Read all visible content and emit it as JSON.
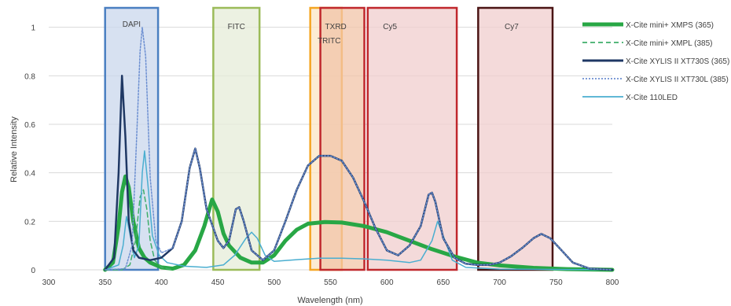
{
  "chart_data": {
    "type": "line",
    "xlabel": "Wavelength (nm)",
    "ylabel": "Relative Intensity",
    "xlim": [
      300,
      800
    ],
    "ylim": [
      0,
      1.1
    ],
    "xticks": [
      300,
      350,
      400,
      450,
      500,
      550,
      600,
      650,
      700,
      750,
      800
    ],
    "yticks": [
      0,
      0.2,
      0.4,
      0.6,
      0.8,
      1
    ],
    "grid": "horizontal",
    "legend_position": "right",
    "filter_bands": [
      {
        "name": "DAPI",
        "range": [
          350,
          397
        ],
        "fill": "#c9d7ec",
        "stroke": "#4a7fc1"
      },
      {
        "name": "FITC",
        "range": [
          446,
          487
        ],
        "fill": "#e6ecd8",
        "stroke": "#9bbb59"
      },
      {
        "name": "TRITC",
        "range": [
          532,
          560
        ],
        "fill": "#fbe6c4",
        "stroke": "#f5a623"
      },
      {
        "name": "TXRD",
        "range": [
          541,
          580
        ],
        "fill": "#f2c4a8",
        "stroke": "#c0282d"
      },
      {
        "name": "Cy5",
        "range": [
          583,
          662
        ],
        "fill": "#f0cdcd",
        "stroke": "#c0282d"
      },
      {
        "name": "Cy7",
        "range": [
          681,
          747
        ],
        "fill": "#f0cdcd",
        "stroke": "#4a1414"
      }
    ],
    "series": [
      {
        "name": "X-Cite mini+ XMPS (365)",
        "color": "#28a745",
        "width": 5,
        "dash": "",
        "points": [
          [
            350,
            0
          ],
          [
            357,
            0.03
          ],
          [
            362,
            0.18
          ],
          [
            365,
            0.32
          ],
          [
            368,
            0.385
          ],
          [
            371,
            0.34
          ],
          [
            375,
            0.2
          ],
          [
            380,
            0.09
          ],
          [
            385,
            0.05
          ],
          [
            390,
            0.03
          ],
          [
            400,
            0.01
          ],
          [
            410,
            0.005
          ],
          [
            420,
            0.02
          ],
          [
            430,
            0.08
          ],
          [
            438,
            0.18
          ],
          [
            445,
            0.29
          ],
          [
            450,
            0.24
          ],
          [
            455,
            0.15
          ],
          [
            460,
            0.1
          ],
          [
            470,
            0.05
          ],
          [
            480,
            0.03
          ],
          [
            490,
            0.03
          ],
          [
            500,
            0.06
          ],
          [
            510,
            0.12
          ],
          [
            520,
            0.165
          ],
          [
            530,
            0.19
          ],
          [
            545,
            0.197
          ],
          [
            560,
            0.195
          ],
          [
            580,
            0.18
          ],
          [
            600,
            0.155
          ],
          [
            620,
            0.12
          ],
          [
            640,
            0.085
          ],
          [
            660,
            0.055
          ],
          [
            680,
            0.03
          ],
          [
            700,
            0.018
          ],
          [
            730,
            0.008
          ],
          [
            760,
            0.003
          ],
          [
            800,
            0
          ]
        ]
      },
      {
        "name": "X-Cite mini+ XMPL (385)",
        "color": "#3fae6a",
        "width": 1.5,
        "dash": "6,4",
        "points": [
          [
            350,
            0
          ],
          [
            365,
            0
          ],
          [
            372,
            0.02
          ],
          [
            377,
            0.12
          ],
          [
            381,
            0.3
          ],
          [
            384,
            0.33
          ],
          [
            387,
            0.25
          ],
          [
            390,
            0.12
          ],
          [
            394,
            0.04
          ],
          [
            400,
            0.01
          ],
          [
            410,
            0
          ]
        ]
      },
      {
        "name": "X-Cite XYLIS II XT730S (365)",
        "color": "#1f3864",
        "width": 2.5,
        "dash": "",
        "points": [
          [
            350,
            0
          ],
          [
            358,
            0.05
          ],
          [
            362,
            0.4
          ],
          [
            365,
            0.8
          ],
          [
            368,
            0.55
          ],
          [
            371,
            0.2
          ],
          [
            375,
            0.08
          ],
          [
            380,
            0.05
          ],
          [
            390,
            0.04
          ],
          [
            400,
            0.05
          ],
          [
            410,
            0.09
          ],
          [
            418,
            0.2
          ],
          [
            425,
            0.42
          ],
          [
            430,
            0.5
          ],
          [
            434,
            0.42
          ],
          [
            440,
            0.25
          ],
          [
            450,
            0.12
          ],
          [
            455,
            0.09
          ],
          [
            460,
            0.12
          ],
          [
            466,
            0.25
          ],
          [
            469,
            0.258
          ],
          [
            473,
            0.2
          ],
          [
            480,
            0.08
          ],
          [
            490,
            0.04
          ],
          [
            500,
            0.08
          ],
          [
            510,
            0.2
          ],
          [
            520,
            0.33
          ],
          [
            530,
            0.43
          ],
          [
            540,
            0.47
          ],
          [
            550,
            0.47
          ],
          [
            560,
            0.45
          ],
          [
            570,
            0.38
          ],
          [
            580,
            0.28
          ],
          [
            590,
            0.17
          ],
          [
            600,
            0.08
          ],
          [
            610,
            0.06
          ],
          [
            620,
            0.1
          ],
          [
            630,
            0.18
          ],
          [
            637,
            0.31
          ],
          [
            640,
            0.318
          ],
          [
            643,
            0.28
          ],
          [
            650,
            0.13
          ],
          [
            660,
            0.05
          ],
          [
            670,
            0.025
          ],
          [
            680,
            0.02
          ],
          [
            690,
            0.02
          ],
          [
            700,
            0.03
          ],
          [
            710,
            0.055
          ],
          [
            720,
            0.09
          ],
          [
            730,
            0.13
          ],
          [
            737,
            0.148
          ],
          [
            745,
            0.13
          ],
          [
            755,
            0.08
          ],
          [
            765,
            0.03
          ],
          [
            780,
            0.005
          ],
          [
            800,
            0
          ]
        ]
      },
      {
        "name": "X-Cite XYLIS II XT730L (385)",
        "color": "#6c8fd1",
        "width": 1.5,
        "dash": "2,2",
        "points": [
          [
            350,
            0
          ],
          [
            368,
            0.005
          ],
          [
            374,
            0.1
          ],
          [
            378,
            0.55
          ],
          [
            381,
            0.9
          ],
          [
            383,
            1.0
          ],
          [
            386,
            0.88
          ],
          [
            390,
            0.38
          ],
          [
            395,
            0.12
          ],
          [
            400,
            0.07
          ],
          [
            410,
            0.09
          ],
          [
            418,
            0.2
          ],
          [
            425,
            0.42
          ],
          [
            430,
            0.5
          ],
          [
            434,
            0.42
          ],
          [
            440,
            0.25
          ],
          [
            450,
            0.12
          ],
          [
            455,
            0.09
          ],
          [
            460,
            0.12
          ],
          [
            466,
            0.25
          ],
          [
            469,
            0.258
          ],
          [
            473,
            0.2
          ],
          [
            480,
            0.08
          ],
          [
            490,
            0.04
          ],
          [
            500,
            0.08
          ],
          [
            510,
            0.2
          ],
          [
            520,
            0.33
          ],
          [
            530,
            0.43
          ],
          [
            540,
            0.47
          ],
          [
            550,
            0.47
          ],
          [
            560,
            0.45
          ],
          [
            570,
            0.38
          ],
          [
            580,
            0.28
          ],
          [
            590,
            0.17
          ],
          [
            600,
            0.08
          ],
          [
            610,
            0.06
          ],
          [
            620,
            0.1
          ],
          [
            630,
            0.18
          ],
          [
            637,
            0.31
          ],
          [
            640,
            0.318
          ],
          [
            643,
            0.28
          ],
          [
            650,
            0.13
          ],
          [
            660,
            0.05
          ],
          [
            670,
            0.025
          ],
          [
            680,
            0.02
          ],
          [
            690,
            0.02
          ],
          [
            700,
            0.03
          ],
          [
            710,
            0.055
          ],
          [
            720,
            0.09
          ],
          [
            730,
            0.13
          ],
          [
            737,
            0.148
          ],
          [
            745,
            0.13
          ],
          [
            755,
            0.08
          ],
          [
            765,
            0.03
          ],
          [
            780,
            0.005
          ],
          [
            800,
            0
          ]
        ]
      },
      {
        "name": "X-Cite 110LED",
        "color": "#4aaed0",
        "width": 1.5,
        "dash": "",
        "points": [
          [
            350,
            0
          ],
          [
            362,
            0.02
          ],
          [
            366,
            0.1
          ],
          [
            369,
            0.22
          ],
          [
            372,
            0.15
          ],
          [
            376,
            0.05
          ],
          [
            380,
            0.1
          ],
          [
            383,
            0.4
          ],
          [
            385,
            0.49
          ],
          [
            388,
            0.35
          ],
          [
            392,
            0.14
          ],
          [
            398,
            0.06
          ],
          [
            405,
            0.03
          ],
          [
            420,
            0.015
          ],
          [
            440,
            0.01
          ],
          [
            455,
            0.02
          ],
          [
            465,
            0.06
          ],
          [
            475,
            0.13
          ],
          [
            480,
            0.155
          ],
          [
            485,
            0.13
          ],
          [
            492,
            0.06
          ],
          [
            500,
            0.035
          ],
          [
            520,
            0.042
          ],
          [
            540,
            0.048
          ],
          [
            560,
            0.048
          ],
          [
            580,
            0.045
          ],
          [
            600,
            0.04
          ],
          [
            620,
            0.03
          ],
          [
            630,
            0.04
          ],
          [
            640,
            0.12
          ],
          [
            645,
            0.2
          ],
          [
            650,
            0.14
          ],
          [
            658,
            0.04
          ],
          [
            670,
            0.01
          ],
          [
            700,
            0.003
          ],
          [
            800,
            0
          ]
        ]
      }
    ]
  }
}
